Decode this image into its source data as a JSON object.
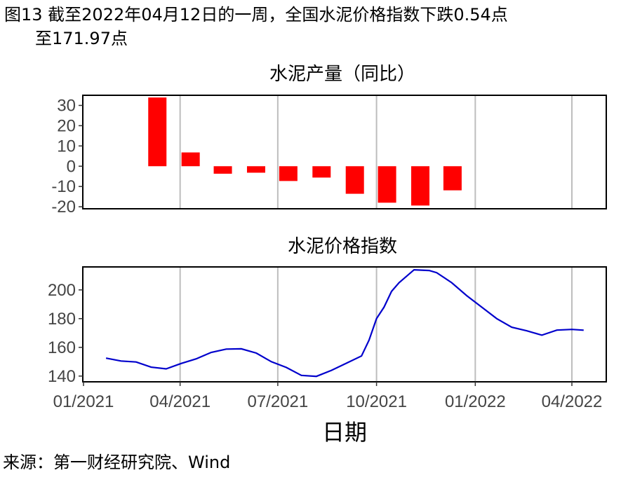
{
  "caption": {
    "line1": "图13  截至2022年04月12日的一周，全国水泥价格指数下跌0.54点",
    "line2": "至171.97点"
  },
  "source": "来源：第一财经研究院、Wind",
  "chart_data": [
    {
      "type": "bar",
      "title": "水泥产量（同比）",
      "xlabel": "",
      "ylabel": "",
      "ylim": [
        -21,
        35
      ],
      "yticks": [
        -20,
        -10,
        0,
        10,
        20,
        30
      ],
      "x_axis": "shared date axis, monthly bars",
      "categories": [
        "2021-03",
        "2021-04",
        "2021-05",
        "2021-06",
        "2021-07",
        "2021-08",
        "2021-09",
        "2021-10",
        "2021-11",
        "2021-12"
      ],
      "values": [
        33.9,
        6.8,
        -3.7,
        -3.2,
        -7.3,
        -5.6,
        -13.6,
        -18.0,
        -19.4,
        -11.9
      ],
      "color": "#ff0000",
      "grid": "vertical major gridlines",
      "legend": "none"
    },
    {
      "type": "line",
      "title": "水泥价格指数",
      "xlabel": "日期",
      "ylabel": "",
      "ylim": [
        136,
        216
      ],
      "yticks": [
        140,
        160,
        180,
        200
      ],
      "xticks": [
        "01/2021",
        "04/2021",
        "07/2021",
        "10/2021",
        "01/2022",
        "04/2022"
      ],
      "color": "#0000cc",
      "grid": "vertical major gridlines",
      "legend": "none",
      "series": [
        {
          "x": [
            "2021-01-22",
            "2021-02-05",
            "2021-02-19",
            "2021-03-05",
            "2021-03-19",
            "2021-04-02",
            "2021-04-16",
            "2021-04-30",
            "2021-05-14",
            "2021-05-28",
            "2021-06-11",
            "2021-06-25",
            "2021-07-09",
            "2021-07-23",
            "2021-08-06",
            "2021-08-20",
            "2021-09-03",
            "2021-09-17",
            "2021-09-24",
            "2021-10-01",
            "2021-10-08",
            "2021-10-15",
            "2021-10-22",
            "2021-11-05",
            "2021-11-19",
            "2021-11-26",
            "2021-12-10",
            "2021-12-24",
            "2022-01-07",
            "2022-01-21",
            "2022-02-04",
            "2022-02-18",
            "2022-03-04",
            "2022-03-18",
            "2022-04-01",
            "2022-04-12"
          ],
          "values": [
            152.5,
            150.5,
            149.8,
            146.2,
            145.0,
            148.8,
            152.0,
            156.5,
            158.8,
            159.0,
            156.0,
            150.0,
            146.0,
            140.5,
            139.8,
            144.0,
            149.0,
            154.0,
            165.0,
            180.0,
            188.0,
            199.0,
            205.0,
            214.0,
            213.5,
            212.0,
            205.0,
            196.0,
            188.0,
            180.0,
            174.0,
            171.5,
            168.5,
            172.0,
            172.5,
            171.97
          ]
        }
      ]
    }
  ]
}
